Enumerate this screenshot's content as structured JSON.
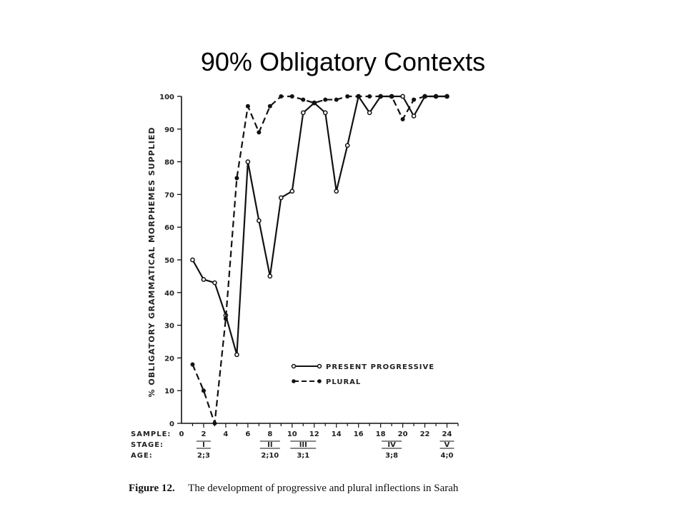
{
  "slide": {
    "title": "90% Obligatory Contexts"
  },
  "chart_data": {
    "type": "line",
    "ylabel": "% OBLIGATORY GRAMMATICAL MORPHEMES SUPPLIED",
    "ylim": [
      0,
      100
    ],
    "yticks": [
      "0",
      "10",
      "20",
      "30",
      "40",
      "50",
      "60",
      "70",
      "80",
      "90",
      "100"
    ],
    "xlim": [
      0,
      25
    ],
    "xtick_values": [
      2,
      4,
      6,
      8,
      10,
      12,
      14,
      16,
      18,
      20,
      22,
      24
    ],
    "row_labels": {
      "sample": "SAMPLE:",
      "stage": "STAGE:",
      "age": "AGE:"
    },
    "sample_ticks": [
      "0",
      "2",
      "4",
      "6",
      "8",
      "10",
      "12",
      "14",
      "16",
      "18",
      "20",
      "22",
      "24"
    ],
    "stages": [
      {
        "label": "I",
        "x": 2
      },
      {
        "label": "II",
        "x": 8
      },
      {
        "label": "III",
        "x": 11
      },
      {
        "label": "IV",
        "x": 19
      },
      {
        "label": "V",
        "x": 24
      }
    ],
    "ages": [
      {
        "label": "2;3",
        "x": 2
      },
      {
        "label": "2;10",
        "x": 8
      },
      {
        "label": "3;1",
        "x": 11
      },
      {
        "label": "3;8",
        "x": 19
      },
      {
        "label": "4;0",
        "x": 24
      }
    ],
    "legend": {
      "placement": "bottom-right"
    },
    "series": [
      {
        "name": "PRESENT PROGRESSIVE",
        "style": "solid",
        "marker": "open-circle",
        "x": [
          1,
          2,
          3,
          4,
          5,
          6,
          7,
          8,
          9,
          10,
          11,
          12,
          13,
          14,
          15,
          16,
          17,
          18,
          19,
          20,
          21,
          22,
          23,
          24
        ],
        "y": [
          50,
          44,
          43,
          33,
          21,
          80,
          62,
          45,
          69,
          71,
          95,
          98,
          95,
          71,
          85,
          100,
          95,
          100,
          100,
          100,
          94,
          100,
          100,
          100
        ]
      },
      {
        "name": "PLURAL",
        "style": "dashed",
        "marker": "filled-circle",
        "x": [
          1,
          2,
          3,
          4,
          5,
          6,
          7,
          8,
          9,
          10,
          11,
          12,
          13,
          14,
          15,
          16,
          17,
          18,
          19,
          20,
          21,
          22,
          23,
          24
        ],
        "y": [
          18,
          10,
          0,
          32,
          75,
          97,
          89,
          97,
          100,
          100,
          99,
          98,
          99,
          99,
          100,
          100,
          100,
          100,
          100,
          93,
          99,
          100,
          100,
          100
        ]
      }
    ]
  },
  "caption": {
    "label": "Figure 12.",
    "text": "The development of progressive and plural inflections in Sarah"
  },
  "colors": {
    "ink": "#111111",
    "background": "#ffffff"
  }
}
